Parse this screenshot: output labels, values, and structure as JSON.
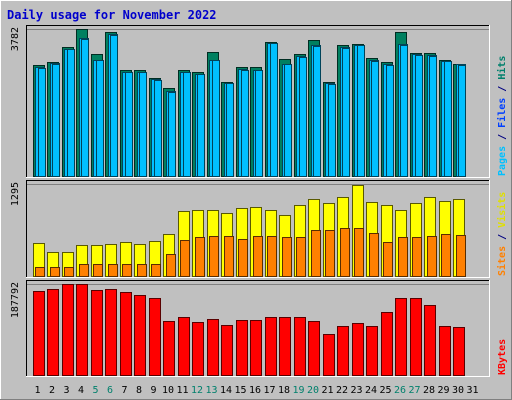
{
  "chart_data": {
    "type": "bar",
    "title": "Daily usage for November 2022",
    "categories": [
      "1",
      "2",
      "3",
      "4",
      "5",
      "6",
      "7",
      "8",
      "9",
      "10",
      "11",
      "12",
      "13",
      "14",
      "15",
      "16",
      "17",
      "18",
      "19",
      "20",
      "21",
      "22",
      "23",
      "24",
      "25",
      "26",
      "27",
      "28",
      "29",
      "30",
      "31"
    ],
    "weekend_categories": [
      "5",
      "6",
      "12",
      "13",
      "19",
      "20",
      "26",
      "27"
    ],
    "panels": [
      {
        "name": "hits-files-pages",
        "ymax_label": "3782",
        "ymax": 3782,
        "legend": [
          {
            "text": "Pages",
            "color": "#00c0ff"
          },
          {
            "text": " / ",
            "color": "#000080"
          },
          {
            "text": "Files",
            "color": "#0040ff"
          },
          {
            "text": " / ",
            "color": "#000080"
          },
          {
            "text": "Hits",
            "color": "#00806c"
          }
        ],
        "series": [
          {
            "name": "Hits",
            "color": "#008060",
            "values": [
              2845,
              2925,
              3310,
              3782,
              3140,
              3700,
              2725,
              2725,
              2520,
              2270,
              2720,
              2670,
              3180,
              2420,
              2805,
              2805,
              3460,
              3020,
              3150,
              3500,
              2420,
              3375,
              3395,
              3035,
              2945,
              3700,
              3170,
              3155,
              2985,
              2885,
              null
            ]
          },
          {
            "name": "Files",
            "color": "#00c0ff",
            "values": [
              2805,
              2895,
              3280,
              3560,
              2995,
              3650,
              2680,
              2680,
              2490,
              2175,
              2685,
              2630,
              2995,
              2395,
              2765,
              2735,
              3430,
              2880,
              3075,
              3375,
              2380,
              3315,
              3380,
              2985,
              2880,
              3400,
              3135,
              3105,
              2960,
              2870,
              null
            ]
          },
          {
            "name": "Pages",
            "color": "#00c0ff",
            "values": [
              2790,
              2880,
              3260,
              3520,
              2980,
              3620,
              2670,
              2670,
              2480,
              2150,
              2670,
              2615,
              2975,
              2380,
              2740,
              2715,
              3410,
              2870,
              3060,
              3350,
              2370,
              3300,
              3365,
              2970,
              2860,
              3380,
              3120,
              3095,
              2950,
              2860,
              null
            ]
          }
        ]
      },
      {
        "name": "visits-sites",
        "ymax_label": "1295",
        "ymax": 1295,
        "legend": [
          {
            "text": "Sites",
            "color": "#ff8000"
          },
          {
            "text": " / ",
            "color": "#000080"
          },
          {
            "text": "Visits",
            "color": "#e0e000"
          }
        ],
        "series": [
          {
            "name": "Visits",
            "color": "#ffff00",
            "values": [
              468,
              338,
              338,
              430,
              430,
              445,
              485,
              450,
              490,
              590,
              920,
              930,
              930,
              880,
              960,
              970,
              930,
              860,
              1000,
              1080,
              1030,
              1105,
              1275,
              1035,
              1000,
              930,
              1025,
              1115,
              1055,
              1085,
              null
            ]
          },
          {
            "name": "Sites",
            "color": "#ff8000",
            "values": [
              123,
              123,
              125,
              167,
              167,
              170,
              170,
              170,
              170,
              305,
              510,
              550,
              565,
              565,
              520,
              570,
              570,
              555,
              555,
              650,
              650,
              675,
              675,
              610,
              480,
              555,
              550,
              560,
              595,
              580,
              null
            ]
          }
        ]
      },
      {
        "name": "kbytes",
        "ymax_label": "187792",
        "ymax": 187792,
        "legend": [
          {
            "text": "KBytes",
            "color": "#ff0000"
          }
        ],
        "series": [
          {
            "name": "KBytes",
            "color": "#ff0000",
            "values": [
              174000,
              178500,
              187000,
              187000,
              176000,
              178500,
              172000,
              165500,
              159000,
              112000,
              119500,
              109000,
              116500,
              104000,
              114000,
              114000,
              119500,
              119500,
              119500,
              110500,
              85000,
              101500,
              108000,
              101500,
              130000,
              158000,
              158000,
              144000,
              101500,
              98500,
              null
            ]
          }
        ]
      }
    ]
  }
}
